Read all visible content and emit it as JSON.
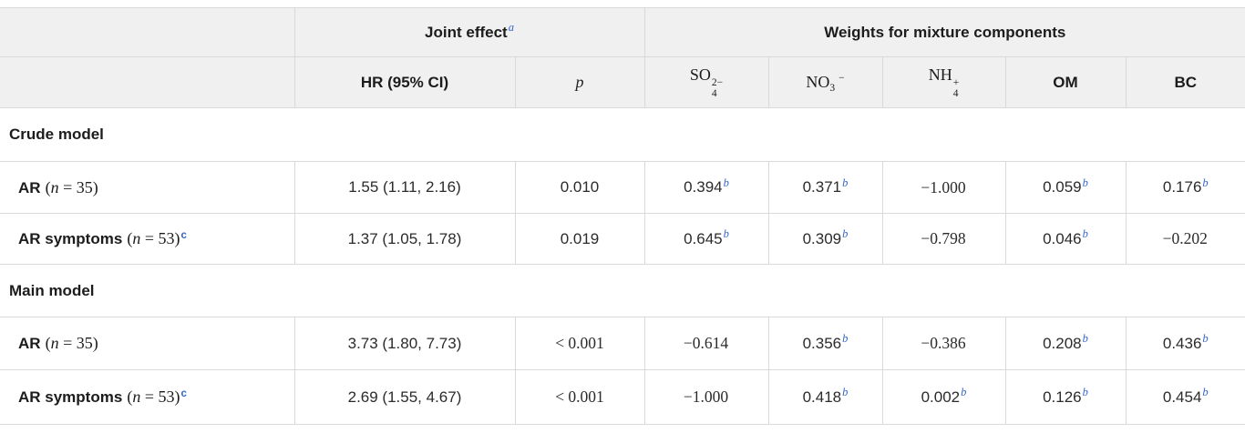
{
  "colors": {
    "accent_blue": "#3366cc",
    "header_bg": "#f0f0f0",
    "border": "#d9d9d9",
    "text": "#222222"
  },
  "header": {
    "joint_effect": {
      "label": "Joint effect",
      "sup": "a"
    },
    "weights_group": "Weights for mixture components",
    "hr": "HR (95% CI)",
    "p": "p",
    "chem": {
      "so4": {
        "base": "SO",
        "sub": "4",
        "sup": "2−"
      },
      "no3": {
        "base": "NO",
        "sub": "3",
        "sup": "−"
      },
      "nh4": {
        "base": "NH",
        "sub": "4",
        "sup": "+"
      },
      "om": "OM",
      "bc": "BC"
    }
  },
  "sections": [
    {
      "title": "Crude model",
      "rows": [
        {
          "name": "AR",
          "math_open": "(",
          "math_var": "n",
          "math_eq": " = 35)",
          "sup": "",
          "hr": "1.55 (1.11, 2.16)",
          "p": {
            "text": "0.010",
            "cls": "val sans"
          },
          "w": [
            {
              "text": "0.394",
              "sup": "b",
              "cls": "val sans"
            },
            {
              "text": "0.371",
              "sup": "b",
              "cls": "val sans"
            },
            {
              "text": "−1.000",
              "sup": "",
              "cls": "val math"
            },
            {
              "text": "0.059",
              "sup": "b",
              "cls": "val sans"
            },
            {
              "text": "0.176",
              "sup": "b",
              "cls": "val sans"
            }
          ]
        },
        {
          "name": "AR symptoms",
          "math_open": "(",
          "math_var": "n",
          "math_eq": " = 53)",
          "sup": "c",
          "hr": "1.37 (1.05, 1.78)",
          "p": {
            "text": "0.019",
            "cls": "val sans"
          },
          "w": [
            {
              "text": "0.645",
              "sup": "b",
              "cls": "val sans"
            },
            {
              "text": "0.309",
              "sup": "b",
              "cls": "val sans"
            },
            {
              "text": "−0.798",
              "sup": "",
              "cls": "val math"
            },
            {
              "text": "0.046",
              "sup": "b",
              "cls": "val sans"
            },
            {
              "text": "−0.202",
              "sup": "",
              "cls": "val math"
            }
          ]
        }
      ]
    },
    {
      "title": "Main model",
      "rows": [
        {
          "name": "AR",
          "math_open": "(",
          "math_var": "n",
          "math_eq": " = 35)",
          "sup": "",
          "hr": "3.73 (1.80, 7.73)",
          "p": {
            "text": "< 0.001",
            "cls": "val math"
          },
          "w": [
            {
              "text": "−0.614",
              "sup": "",
              "cls": "val math"
            },
            {
              "text": "0.356",
              "sup": "b",
              "cls": "val sans"
            },
            {
              "text": "−0.386",
              "sup": "",
              "cls": "val math"
            },
            {
              "text": "0.208",
              "sup": "b",
              "cls": "val sans"
            },
            {
              "text": "0.436",
              "sup": "b",
              "cls": "val sans"
            }
          ]
        },
        {
          "name": "AR symptoms",
          "math_open": "(",
          "math_var": "n",
          "math_eq": " = 53)",
          "sup": "c",
          "hr": "2.69 (1.55, 4.67)",
          "p": {
            "text": "< 0.001",
            "cls": "val math"
          },
          "w": [
            {
              "text": "−1.000",
              "sup": "",
              "cls": "val math"
            },
            {
              "text": "0.418",
              "sup": "b",
              "cls": "val sans"
            },
            {
              "text": "0.002",
              "sup": "b",
              "cls": "val sans"
            },
            {
              "text": "0.126",
              "sup": "b",
              "cls": "val sans"
            },
            {
              "text": "0.454",
              "sup": "b",
              "cls": "val sans"
            }
          ]
        }
      ]
    }
  ]
}
